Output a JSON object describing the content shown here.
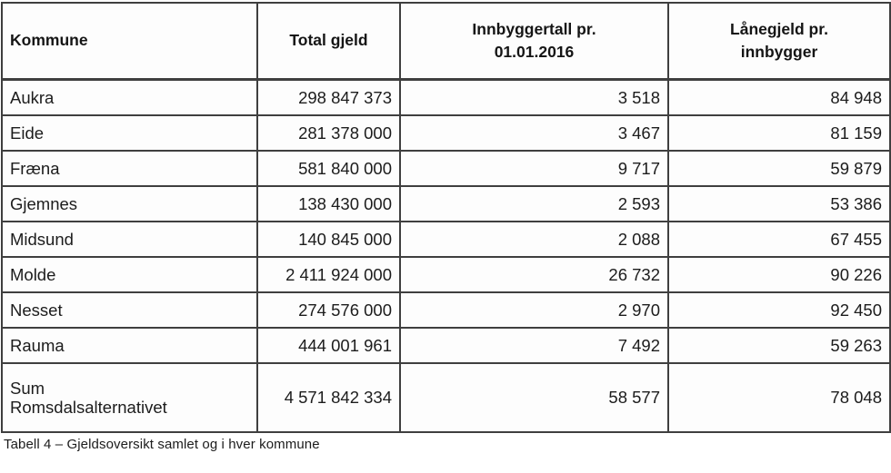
{
  "table": {
    "header": {
      "kommune": "Kommune",
      "total_gjeld": "Total gjeld",
      "innbyggertall": "Innbyggertall pr.\n01.01.2016",
      "lanegjeld": "Lånegjeld pr.\ninnbygger"
    },
    "rows": [
      {
        "kommune": "Aukra",
        "total_gjeld": "298 847 373",
        "innbyggertall": "3 518",
        "lanegjeld": "84 948"
      },
      {
        "kommune": "Eide",
        "total_gjeld": "281 378 000",
        "innbyggertall": "3 467",
        "lanegjeld": "81 159"
      },
      {
        "kommune": "Fræna",
        "total_gjeld": "581 840 000",
        "innbyggertall": "9 717",
        "lanegjeld": "59 879"
      },
      {
        "kommune": "Gjemnes",
        "total_gjeld": "138 430 000",
        "innbyggertall": "2 593",
        "lanegjeld": "53 386"
      },
      {
        "kommune": "Midsund",
        "total_gjeld": "140 845 000",
        "innbyggertall": "2 088",
        "lanegjeld": "67 455"
      },
      {
        "kommune": "Molde",
        "total_gjeld": "2 411 924 000",
        "innbyggertall": "26 732",
        "lanegjeld": "90 226"
      },
      {
        "kommune": "Nesset",
        "total_gjeld": "274 576 000",
        "innbyggertall": "2 970",
        "lanegjeld": "92 450"
      },
      {
        "kommune": "Rauma",
        "total_gjeld": "444 001 961",
        "innbyggertall": "7 492",
        "lanegjeld": "59 263"
      },
      {
        "kommune": "Sum\nRomsdalsalternativet",
        "total_gjeld": "4 571 842 334",
        "innbyggertall": "58 577",
        "lanegjeld": "78 048"
      }
    ]
  },
  "caption": "Tabell 4 – Gjeldsoversikt samlet og i hver kommune",
  "colors": {
    "border": "#3f3f3f",
    "text": "#1c1c1c",
    "background": "#ffffff"
  }
}
